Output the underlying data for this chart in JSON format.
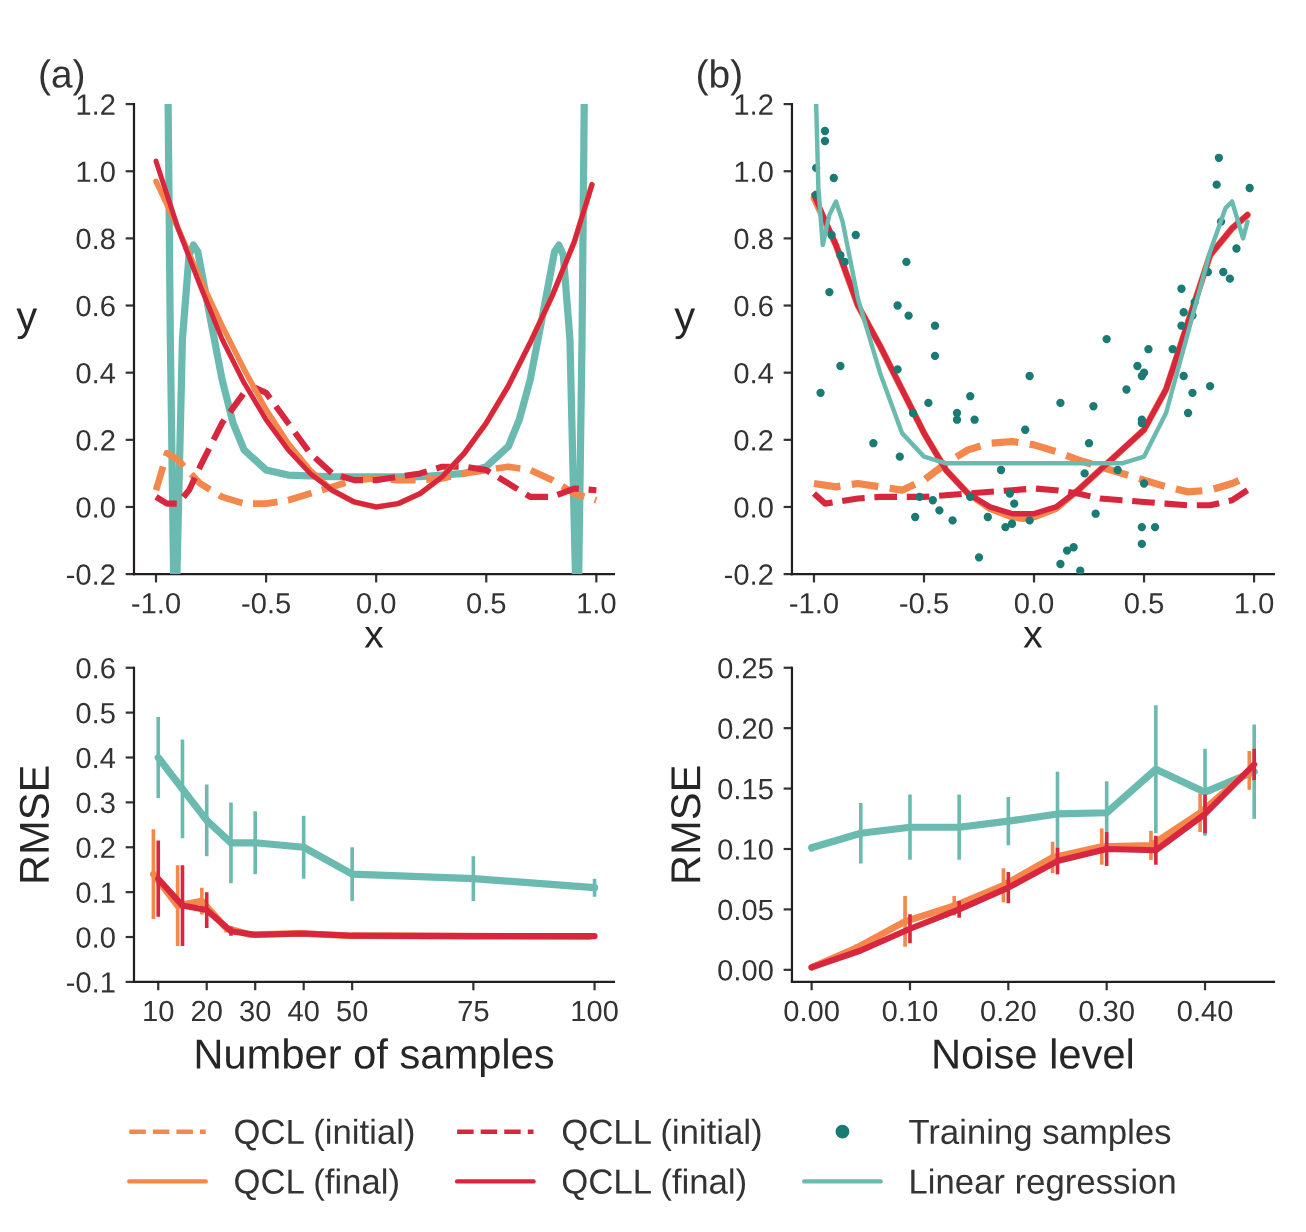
{
  "chart_data": [
    {
      "type": "line",
      "title": "(a)",
      "xlabel": "x",
      "ylabel": "y",
      "xlim": [
        -1.1,
        1.08
      ],
      "ylim": [
        -0.2,
        1.2
      ],
      "xticks": [
        {
          "value": -1,
          "label": "-1.0"
        },
        -0.5,
        {
          "value": 0,
          "label": "0.0"
        },
        0.5,
        {
          "value": 1,
          "label": "1.0"
        }
      ],
      "yticks": [
        -0.2,
        {
          "value": 0,
          "label": "0.0"
        },
        0.2,
        0.4,
        0.6,
        0.8,
        {
          "value": 1,
          "label": "1.0"
        },
        1.2
      ],
      "grid": false,
      "series": [
        {
          "color": "#6bbaaf",
          "line_style": "solid",
          "x": [
            -0.945,
            -0.935,
            -0.92,
            -0.905,
            -0.88,
            -0.85,
            -0.83,
            -0.81,
            -0.75,
            -0.7,
            -0.65,
            -0.6,
            -0.5,
            -0.4,
            -0.2,
            0.0,
            0.2,
            0.4,
            0.5,
            0.6,
            0.65,
            0.7,
            0.75,
            0.81,
            0.83,
            0.85,
            0.88,
            0.905,
            0.92,
            0.935,
            0.945
          ],
          "values": [
            1.2,
            0.5,
            -0.2,
            -0.2,
            0.5,
            0.75,
            0.78,
            0.76,
            0.55,
            0.38,
            0.25,
            0.17,
            0.11,
            0.095,
            0.09,
            0.09,
            0.09,
            0.1,
            0.12,
            0.18,
            0.26,
            0.38,
            0.55,
            0.76,
            0.78,
            0.75,
            0.5,
            -0.2,
            -0.2,
            0.5,
            1.2
          ]
        },
        {
          "color": "#f4874b",
          "line_style": "dashed",
          "x": [
            -1.0,
            -0.95,
            -0.9,
            -0.8,
            -0.7,
            -0.6,
            -0.5,
            -0.4,
            -0.3,
            -0.2,
            -0.1,
            0.0,
            0.1,
            0.2,
            0.3,
            0.4,
            0.5,
            0.6,
            0.7,
            0.8,
            0.9,
            1.0
          ],
          "values": [
            0.05,
            0.16,
            0.14,
            0.07,
            0.03,
            0.01,
            0.01,
            0.02,
            0.04,
            0.06,
            0.08,
            0.085,
            0.08,
            0.08,
            0.085,
            0.1,
            0.11,
            0.12,
            0.11,
            0.08,
            0.04,
            0.02
          ]
        },
        {
          "color": "#d7263d",
          "line_style": "dashed",
          "x": [
            -1.0,
            -0.95,
            -0.9,
            -0.85,
            -0.8,
            -0.7,
            -0.6,
            -0.55,
            -0.5,
            -0.4,
            -0.3,
            -0.2,
            -0.1,
            0.0,
            0.1,
            0.2,
            0.3,
            0.4,
            0.5,
            0.6,
            0.7,
            0.8,
            0.9,
            1.0
          ],
          "values": [
            0.03,
            0.01,
            0.01,
            0.05,
            0.12,
            0.25,
            0.34,
            0.355,
            0.34,
            0.25,
            0.16,
            0.1,
            0.08,
            0.08,
            0.09,
            0.1,
            0.12,
            0.12,
            0.11,
            0.07,
            0.03,
            0.03,
            0.055,
            0.05
          ]
        },
        {
          "color": "#f4874b",
          "line_style": "solid",
          "x": [
            -1.0,
            -0.9,
            -0.8,
            -0.7,
            -0.6,
            -0.5,
            -0.4,
            -0.3,
            -0.2,
            -0.1,
            0.0,
            0.1,
            0.2,
            0.3,
            0.4,
            0.5,
            0.6,
            0.7,
            0.8,
            0.9,
            0.98
          ],
          "values": [
            0.97,
            0.83,
            0.68,
            0.54,
            0.41,
            0.29,
            0.19,
            0.11,
            0.05,
            0.015,
            0.0,
            0.01,
            0.04,
            0.09,
            0.16,
            0.25,
            0.36,
            0.49,
            0.63,
            0.79,
            0.96
          ]
        },
        {
          "color": "#d7263d",
          "line_style": "solid",
          "x": [
            -1.0,
            -0.9,
            -0.8,
            -0.7,
            -0.6,
            -0.5,
            -0.4,
            -0.3,
            -0.2,
            -0.1,
            0.0,
            0.1,
            0.2,
            0.3,
            0.4,
            0.5,
            0.6,
            0.7,
            0.8,
            0.9,
            0.98
          ],
          "values": [
            1.03,
            0.83,
            0.66,
            0.5,
            0.37,
            0.26,
            0.17,
            0.1,
            0.05,
            0.015,
            0.0,
            0.01,
            0.04,
            0.09,
            0.16,
            0.25,
            0.36,
            0.49,
            0.63,
            0.79,
            0.96
          ]
        }
      ]
    },
    {
      "type": "line",
      "title": "(b)",
      "xlabel": "x",
      "ylabel": "y",
      "xlim": [
        -1.1,
        1.09
      ],
      "ylim": [
        -0.2,
        1.2
      ],
      "xticks": [
        {
          "value": -1,
          "label": "-1.0"
        },
        -0.5,
        {
          "value": 0,
          "label": "0.0"
        },
        0.5,
        {
          "value": 1,
          "label": "1.0"
        }
      ],
      "yticks": [
        -0.2,
        {
          "value": 0,
          "label": "0.0"
        },
        0.2,
        0.4,
        0.6,
        0.8,
        {
          "value": 1,
          "label": "1.0"
        },
        1.2
      ],
      "grid": false,
      "legend": "bottom",
      "series": [
        {
          "name": "QCL (initial)",
          "color": "#f4874b",
          "line_style": "dashed",
          "x": [
            -1.0,
            -0.9,
            -0.8,
            -0.7,
            -0.6,
            -0.5,
            -0.4,
            -0.3,
            -0.2,
            -0.1,
            0.0,
            0.1,
            0.2,
            0.3,
            0.4,
            0.5,
            0.6,
            0.7,
            0.8,
            0.9,
            0.97
          ],
          "values": [
            0.07,
            0.06,
            0.07,
            0.06,
            0.05,
            0.08,
            0.13,
            0.17,
            0.19,
            0.195,
            0.185,
            0.165,
            0.14,
            0.12,
            0.1,
            0.08,
            0.06,
            0.045,
            0.05,
            0.07,
            0.09
          ]
        },
        {
          "name": "QCL (final)",
          "color": "#f4874b",
          "line_style": "solid",
          "x": [
            -1.0,
            -0.9,
            -0.8,
            -0.7,
            -0.6,
            -0.5,
            -0.4,
            -0.3,
            -0.2,
            -0.1,
            -0.05,
            0.0,
            0.1,
            0.2,
            0.3,
            0.4,
            0.5,
            0.6,
            0.7,
            0.8,
            0.9,
            0.97
          ],
          "values": [
            0.92,
            0.78,
            0.6,
            0.48,
            0.35,
            0.22,
            0.11,
            0.04,
            -0.005,
            -0.03,
            -0.035,
            -0.03,
            -0.005,
            0.05,
            0.11,
            0.17,
            0.23,
            0.35,
            0.55,
            0.75,
            0.83,
            0.87
          ]
        },
        {
          "name": "QCLL (initial)",
          "color": "#d7263d",
          "line_style": "dashed",
          "x": [
            -1.0,
            -0.95,
            -0.9,
            -0.8,
            -0.7,
            -0.5,
            -0.3,
            -0.1,
            0.0,
            0.1,
            0.2,
            0.3,
            0.4,
            0.5,
            0.6,
            0.7,
            0.8,
            0.9,
            0.97
          ],
          "values": [
            0.04,
            0.01,
            0.015,
            0.025,
            0.03,
            0.03,
            0.04,
            0.05,
            0.055,
            0.05,
            0.04,
            0.025,
            0.02,
            0.015,
            0.01,
            0.005,
            0.005,
            0.02,
            0.05
          ]
        },
        {
          "name": "QCLL (final)",
          "color": "#d7263d",
          "line_style": "solid",
          "x": [
            -1.0,
            -0.9,
            -0.8,
            -0.7,
            -0.6,
            -0.5,
            -0.4,
            -0.3,
            -0.2,
            -0.1,
            0.0,
            0.1,
            0.2,
            0.3,
            0.4,
            0.5,
            0.6,
            0.7,
            0.8,
            0.9,
            0.97
          ],
          "values": [
            0.93,
            0.78,
            0.6,
            0.48,
            0.35,
            0.22,
            0.11,
            0.04,
            0.0,
            -0.02,
            -0.02,
            0.0,
            0.05,
            0.11,
            0.17,
            0.23,
            0.35,
            0.55,
            0.75,
            0.83,
            0.87
          ]
        },
        {
          "name": "Training samples",
          "type": "scatter",
          "marker": "circle",
          "color": "#1a7a74",
          "x": [
            -0.99,
            -0.95,
            -0.95,
            -0.91,
            -0.99,
            -0.97,
            -0.93,
            -0.92,
            -0.88,
            -0.86,
            -0.88,
            -0.81,
            -0.73,
            -0.62,
            -0.62,
            -0.61,
            -0.58,
            -0.57,
            -0.55,
            -0.54,
            -0.52,
            -0.48,
            -0.45,
            -0.45,
            -0.46,
            -0.43,
            -0.37,
            -0.35,
            -0.35,
            -0.29,
            -0.27,
            -0.29,
            -0.25,
            -0.21,
            -0.15,
            -0.13,
            -0.11,
            -0.1,
            -0.09,
            -0.04,
            -0.02,
            -0.02,
            0.12,
            0.12,
            0.15,
            0.18,
            0.21,
            0.23,
            0.25,
            0.27,
            0.28,
            0.33,
            0.38,
            0.42,
            0.47,
            0.49,
            0.5,
            0.49,
            0.49,
            0.52,
            0.5,
            0.49,
            0.49,
            0.55,
            0.63,
            0.67,
            0.67,
            0.68,
            0.68,
            0.7,
            0.72,
            0.73,
            0.72,
            0.79,
            0.8,
            0.83,
            0.84,
            0.85,
            0.86,
            0.89,
            0.92,
            0.98
          ],
          "values": [
            1.01,
            1.12,
            1.09,
            0.98,
            0.93,
            0.34,
            0.64,
            0.81,
            0.75,
            0.73,
            0.42,
            0.81,
            0.19,
            0.6,
            0.41,
            0.15,
            0.73,
            0.57,
            0.28,
            -0.03,
            0.03,
            0.31,
            0.54,
            0.45,
            0.02,
            -0.01,
            -0.04,
            0.28,
            0.26,
            0.33,
            0.26,
            0.03,
            -0.15,
            -0.03,
            0.11,
            -0.06,
            0.04,
            -0.05,
            0.01,
            0.23,
            -0.04,
            0.39,
            0.31,
            -0.17,
            -0.13,
            -0.12,
            -0.19,
            0.1,
            0.19,
            0.3,
            -0.02,
            0.5,
            0.11,
            0.35,
            0.42,
            0.39,
            0.4,
            0.26,
            0.25,
            0.47,
            0.07,
            -0.06,
            -0.11,
            -0.06,
            0.47,
            0.65,
            0.54,
            0.58,
            0.39,
            0.28,
            0.57,
            0.61,
            0.34,
            0.7,
            0.36,
            0.96,
            1.04,
            0.85,
            0.7,
            0.68,
            0.77,
            0.95
          ]
        },
        {
          "name": "Linear regression",
          "color": "#6bbaaf",
          "line_style": "solid",
          "x": [
            -0.99,
            -0.98,
            -0.96,
            -0.93,
            -0.9,
            -0.87,
            -0.8,
            -0.7,
            -0.6,
            -0.5,
            -0.4,
            -0.2,
            0.0,
            0.2,
            0.4,
            0.5,
            0.6,
            0.7,
            0.8,
            0.87,
            0.9,
            0.95,
            0.97
          ],
          "values": [
            1.2,
            0.95,
            0.78,
            0.87,
            0.91,
            0.85,
            0.62,
            0.4,
            0.22,
            0.15,
            0.13,
            0.13,
            0.13,
            0.13,
            0.13,
            0.15,
            0.28,
            0.52,
            0.76,
            0.89,
            0.91,
            0.8,
            0.85
          ]
        }
      ]
    },
    {
      "type": "line",
      "xlabel": "Number of samples",
      "ylabel": "RMSE",
      "xlim": [
        5,
        104
      ],
      "ylim": [
        -0.1,
        0.6
      ],
      "xticks": [
        10,
        20,
        30,
        40,
        50,
        75,
        100
      ],
      "yticks": [
        -0.1,
        {
          "value": 0,
          "label": "0.0"
        },
        0.1,
        0.2,
        0.3,
        0.4,
        0.5,
        0.6
      ],
      "grid": false,
      "series": [
        {
          "color": "#6bbaaf",
          "line_style": "solid",
          "x": [
            10,
            15,
            20,
            25,
            30,
            40,
            50,
            75,
            100
          ],
          "values": [
            0.4,
            0.33,
            0.26,
            0.21,
            0.21,
            0.2,
            0.14,
            0.13,
            0.11
          ],
          "errors": [
            0.09,
            0.11,
            0.08,
            0.09,
            0.07,
            0.07,
            0.06,
            0.05,
            0.02
          ]
        },
        {
          "color": "#f4874b",
          "line_style": "solid",
          "x": [
            9,
            14,
            19,
            24,
            29,
            39,
            49,
            74,
            99
          ],
          "values": [
            0.14,
            0.07,
            0.08,
            0.02,
            0.005,
            0.008,
            0.003,
            0.002,
            0.001
          ],
          "errors": [
            0.1,
            0.09,
            0.03,
            0.01,
            null,
            0.005,
            null,
            null,
            null
          ]
        },
        {
          "color": "#d7263d",
          "line_style": "solid",
          "x": [
            10,
            15,
            20,
            25,
            30,
            40,
            50,
            75,
            100
          ],
          "values": [
            0.13,
            0.07,
            0.06,
            0.013,
            0.005,
            0.008,
            0.003,
            0.002,
            0.002
          ],
          "errors": [
            0.085,
            0.09,
            0.04,
            0.01,
            null,
            null,
            null,
            null,
            null
          ]
        }
      ]
    },
    {
      "type": "line",
      "xlabel": "Noise level",
      "ylabel": "RMSE",
      "xlim": [
        -0.02,
        0.47
      ],
      "ylim": [
        -0.01,
        0.25
      ],
      "xticks": [
        {
          "value": 0.0,
          "label": "0.00"
        },
        {
          "value": 0.1,
          "label": "0.10"
        },
        {
          "value": 0.2,
          "label": "0.20"
        },
        {
          "value": 0.3,
          "label": "0.30"
        },
        {
          "value": 0.4,
          "label": "0.40"
        }
      ],
      "yticks": [
        {
          "value": 0.0,
          "label": "0.00"
        },
        {
          "value": 0.05,
          "label": "0.05"
        },
        {
          "value": 0.1,
          "label": "0.10"
        },
        {
          "value": 0.15,
          "label": "0.15"
        },
        {
          "value": 0.2,
          "label": "0.20"
        },
        {
          "value": 0.25,
          "label": "0.25"
        }
      ],
      "grid": false,
      "series": [
        {
          "color": "#6bbaaf",
          "line_style": "solid",
          "x": [
            0.0,
            0.05,
            0.1,
            0.15,
            0.2,
            0.25,
            0.3,
            0.35,
            0.4,
            0.45
          ],
          "values": [
            0.101,
            0.113,
            0.118,
            0.118,
            0.123,
            0.129,
            0.13,
            0.166,
            0.147,
            0.164
          ],
          "errors": [
            0.003,
            0.025,
            0.027,
            0.027,
            0.02,
            0.035,
            0.026,
            0.053,
            0.036,
            0.039
          ]
        },
        {
          "color": "#f4874b",
          "line_style": "solid",
          "x": [
            0.0,
            0.045,
            0.095,
            0.145,
            0.195,
            0.245,
            0.295,
            0.345,
            0.395,
            0.445
          ],
          "values": [
            0.002,
            0.018,
            0.04,
            0.053,
            0.07,
            0.093,
            0.102,
            0.103,
            0.13,
            0.165
          ],
          "errors": [
            null,
            0.003,
            0.021,
            0.008,
            0.014,
            0.013,
            0.015,
            0.012,
            0.016,
            0.016
          ]
        },
        {
          "color": "#d7263d",
          "line_style": "solid",
          "x": [
            0.0,
            0.05,
            0.1,
            0.15,
            0.2,
            0.25,
            0.3,
            0.35,
            0.4,
            0.45
          ],
          "values": [
            0.002,
            0.016,
            0.034,
            0.05,
            0.068,
            0.09,
            0.1,
            0.099,
            0.129,
            0.17
          ],
          "errors": [
            null,
            0.002,
            0.012,
            0.007,
            0.013,
            0.011,
            0.014,
            0.012,
            0.016,
            0.013
          ]
        }
      ]
    }
  ]
}
